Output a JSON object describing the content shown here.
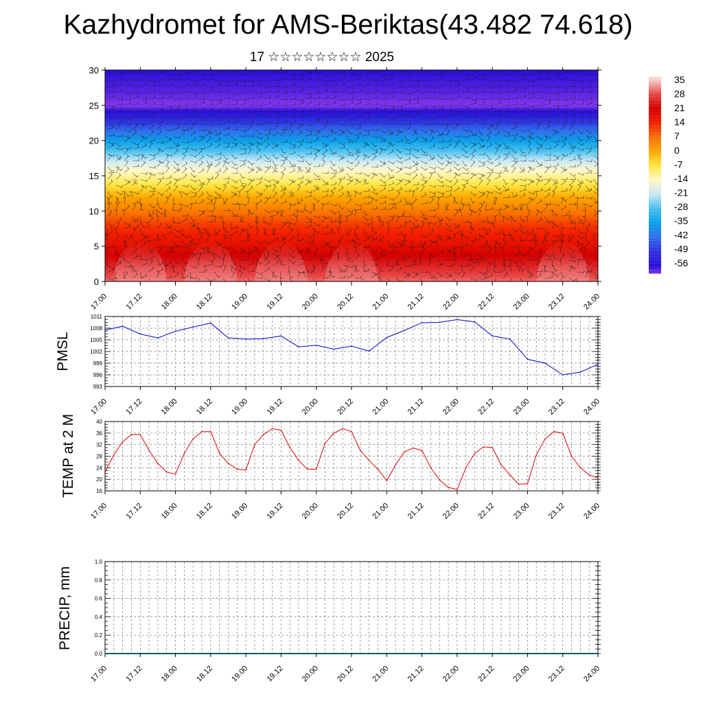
{
  "title": "Kazhydromet for AMS-Beriktas(43.482 74.618)",
  "subtitle": "17 ☆☆☆☆☆☆☆☆ 2025",
  "time_ticks": [
    "17.00",
    "17.12",
    "18.00",
    "18.12",
    "19.00",
    "19.12",
    "20.00",
    "20.12",
    "21.00",
    "21.12",
    "22.00",
    "22.12",
    "23.00",
    "23.12",
    "24.00"
  ],
  "colorbar": {
    "labels": [
      "35",
      "28",
      "21",
      "14",
      "7",
      "0",
      "-7",
      "-14",
      "-21",
      "-28",
      "-35",
      "-42",
      "-49",
      "-56"
    ],
    "colors": [
      "#f5b8b8",
      "#e53030",
      "#d10000",
      "#f42000",
      "#f87000",
      "#fba800",
      "#ffe640",
      "#fff8c0",
      "#c8e8f4",
      "#48c0f0",
      "#0aa0e8",
      "#3060ec",
      "#3020d8",
      "#8438ec"
    ]
  },
  "chart_data": [
    {
      "type": "heatmap",
      "title": "",
      "ylim": [
        0,
        30
      ],
      "yticks": [
        "0",
        "5",
        "10",
        "15",
        "20",
        "25",
        "30"
      ],
      "description_of_values": "temperature vs height (km) over time with wind barbs",
      "levels": [
        0,
        2,
        5,
        8,
        10,
        12,
        14,
        16,
        18,
        20,
        22,
        24,
        25,
        27,
        30
      ],
      "temperature_profile": [
        30,
        25,
        18,
        12,
        6,
        0,
        -8,
        -15,
        -25,
        -35,
        -45,
        -55,
        -60,
        -58,
        -56
      ],
      "surface_warm_peaks_x": [
        17.12,
        18.12,
        19.12,
        20.12,
        23.12
      ]
    },
    {
      "type": "line",
      "ylabel": "PMSL",
      "ylim": [
        993,
        1011
      ],
      "yticks": [
        "993",
        "996",
        "999",
        "1002",
        "1005",
        "1008",
        "1011"
      ],
      "color": "#0000cc",
      "x": [
        17.0,
        17.25,
        17.5,
        17.75,
        18.0,
        18.25,
        18.5,
        18.75,
        19.0,
        19.25,
        19.5,
        19.75,
        20.0,
        20.25,
        20.5,
        20.75,
        21.0,
        21.25,
        21.5,
        21.75,
        22.0,
        22.25,
        22.5,
        22.75,
        23.0,
        23.25,
        23.5,
        23.75,
        24.0
      ],
      "values": [
        1007.5,
        1008.5,
        1006.5,
        1005.5,
        1007.2,
        1008.3,
        1009.3,
        1005.5,
        1005.2,
        1005.3,
        1006.0,
        1003.2,
        1003.6,
        1002.6,
        1003.4,
        1002.1,
        1005.6,
        1007.4,
        1009.4,
        1009.5,
        1010.2,
        1009.6,
        1006.0,
        1005.2,
        1000.0,
        999.0,
        996.0,
        996.7,
        998.7
      ]
    },
    {
      "type": "line",
      "ylabel": "TEMP at 2 M",
      "ylim": [
        16,
        40
      ],
      "yticks": [
        "16",
        "20",
        "24",
        "28",
        "32",
        "36",
        "40"
      ],
      "color": "#dd0000",
      "x": [
        17.0,
        17.125,
        17.25,
        17.375,
        17.5,
        17.625,
        17.75,
        17.875,
        18.0,
        18.125,
        18.25,
        18.375,
        18.5,
        18.625,
        18.75,
        18.875,
        19.0,
        19.125,
        19.25,
        19.375,
        19.5,
        19.625,
        19.75,
        19.875,
        20.0,
        20.125,
        20.25,
        20.375,
        20.5,
        20.625,
        20.75,
        20.875,
        21.0,
        21.125,
        21.25,
        21.375,
        21.5,
        21.625,
        21.75,
        21.875,
        22.0,
        22.125,
        22.25,
        22.375,
        22.5,
        22.625,
        22.75,
        22.875,
        23.0,
        23.125,
        23.25,
        23.375,
        23.5,
        23.625,
        23.75,
        23.875,
        24.0
      ],
      "values": [
        22.5,
        28.5,
        33.0,
        35.5,
        35.5,
        30.0,
        25.5,
        22.5,
        21.8,
        29.0,
        34.0,
        36.5,
        36.5,
        29.0,
        25.5,
        23.5,
        23.2,
        32.0,
        35.5,
        37.5,
        37.0,
        31.0,
        26.5,
        23.5,
        23.5,
        32.5,
        36.0,
        37.5,
        36.5,
        30.0,
        26.5,
        23.5,
        19.5,
        25.0,
        29.5,
        30.8,
        30.0,
        24.0,
        19.8,
        17.2,
        16.5,
        24.0,
        29.0,
        31.2,
        31.0,
        25.0,
        21.5,
        18.3,
        18.5,
        28.5,
        34.0,
        36.5,
        36.0,
        28.0,
        24.0,
        21.5,
        20.5
      ]
    },
    {
      "type": "bar",
      "ylabel": "PRECIP, mm",
      "ylim": [
        0,
        1
      ],
      "yticks": [
        "0.0",
        "0.2",
        "0.4",
        "0.6",
        "0.8",
        "1.0"
      ],
      "values": []
    }
  ]
}
